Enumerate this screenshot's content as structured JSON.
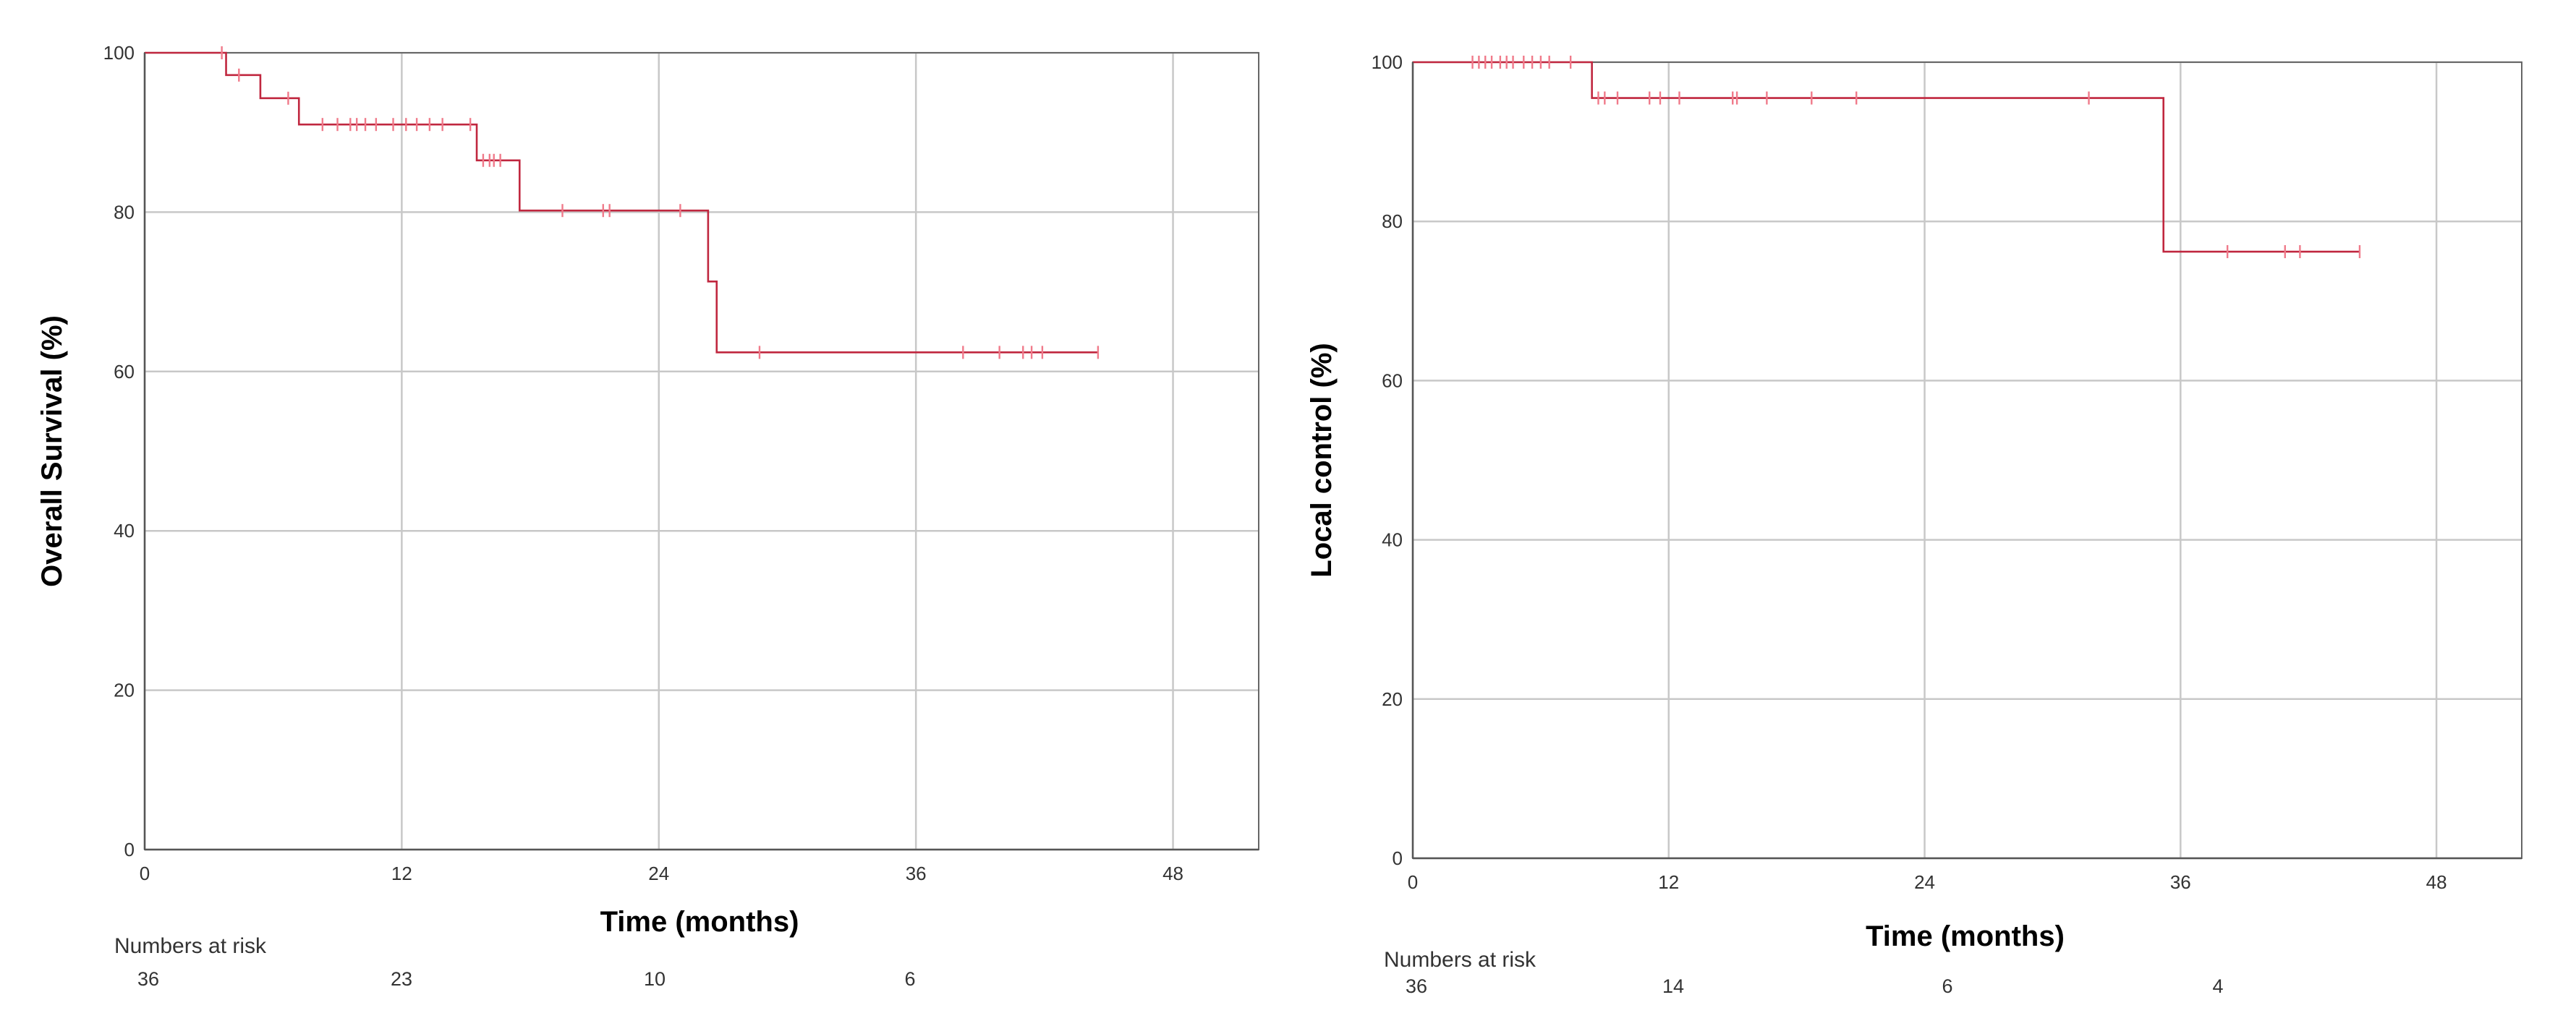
{
  "colors": {
    "line": "#c0273f",
    "censor": "#f07a8a",
    "grid": "#c8c8c8"
  },
  "chart_data": [
    {
      "type": "line",
      "step": true,
      "xlabel": "Time (months)",
      "ylabel": "Overall Survival (%)",
      "xlim": [
        0,
        52
      ],
      "ylim": [
        0,
        100
      ],
      "xticks": [
        "0",
        "12",
        "24",
        "36",
        "48"
      ],
      "yticks": [
        "0",
        "20",
        "40",
        "60",
        "80",
        "100"
      ],
      "grid": true,
      "steps": [
        [
          0,
          100
        ],
        [
          3.8,
          97.2
        ],
        [
          5.4,
          94.3
        ],
        [
          7.2,
          91.0
        ],
        [
          15.5,
          86.5
        ],
        [
          17.5,
          80.2
        ],
        [
          26.3,
          71.3
        ],
        [
          26.7,
          62.4
        ]
      ],
      "x_end": 44.5,
      "censored": [
        [
          3.6,
          100
        ],
        [
          4.4,
          97.2
        ],
        [
          6.7,
          94.3
        ],
        [
          8.3,
          91.0
        ],
        [
          9.0,
          91.0
        ],
        [
          9.6,
          91.0
        ],
        [
          9.9,
          91.0
        ],
        [
          10.3,
          91.0
        ],
        [
          10.8,
          91.0
        ],
        [
          11.6,
          91.0
        ],
        [
          12.2,
          91.0
        ],
        [
          12.7,
          91.0
        ],
        [
          13.3,
          91.0
        ],
        [
          13.9,
          91.0
        ],
        [
          15.2,
          91.0
        ],
        [
          15.8,
          86.5
        ],
        [
          16.1,
          86.5
        ],
        [
          16.3,
          86.5
        ],
        [
          16.6,
          86.5
        ],
        [
          19.5,
          80.2
        ],
        [
          21.4,
          80.2
        ],
        [
          21.7,
          80.2
        ],
        [
          25.0,
          80.2
        ],
        [
          28.7,
          62.4
        ],
        [
          38.2,
          62.4
        ],
        [
          39.9,
          62.4
        ],
        [
          41.0,
          62.4
        ],
        [
          41.4,
          62.4
        ],
        [
          41.9,
          62.4
        ],
        [
          44.5,
          62.4
        ]
      ],
      "risk_table": {
        "title": "Numbers at risk",
        "times": [
          0,
          12,
          24,
          36
        ],
        "values": [
          "36",
          "23",
          "10",
          "6"
        ]
      }
    },
    {
      "type": "line",
      "step": true,
      "xlabel": "Time (months)",
      "ylabel": "Local control (%)",
      "xlim": [
        0,
        52
      ],
      "ylim": [
        0,
        100
      ],
      "xticks": [
        "0",
        "12",
        "24",
        "36",
        "48"
      ],
      "yticks": [
        "0",
        "20",
        "40",
        "60",
        "80",
        "100"
      ],
      "grid": true,
      "steps": [
        [
          0,
          100
        ],
        [
          8.4,
          95.5
        ],
        [
          35.2,
          76.2
        ]
      ],
      "x_end": 44.4,
      "censored": [
        [
          2.8,
          100
        ],
        [
          3.1,
          100
        ],
        [
          3.4,
          100
        ],
        [
          3.7,
          100
        ],
        [
          4.1,
          100
        ],
        [
          4.4,
          100
        ],
        [
          4.7,
          100
        ],
        [
          5.2,
          100
        ],
        [
          5.6,
          100
        ],
        [
          6.0,
          100
        ],
        [
          6.4,
          100
        ],
        [
          7.4,
          100
        ],
        [
          8.7,
          95.5
        ],
        [
          9.0,
          95.5
        ],
        [
          9.6,
          95.5
        ],
        [
          11.1,
          95.5
        ],
        [
          11.6,
          95.5
        ],
        [
          12.5,
          95.5
        ],
        [
          15.0,
          95.5
        ],
        [
          15.2,
          95.5
        ],
        [
          16.6,
          95.5
        ],
        [
          18.7,
          95.5
        ],
        [
          20.8,
          95.5
        ],
        [
          31.7,
          95.5
        ],
        [
          38.2,
          76.2
        ],
        [
          40.9,
          76.2
        ],
        [
          41.6,
          76.2
        ],
        [
          44.4,
          76.2
        ]
      ],
      "risk_table": {
        "title": "Numbers at risk",
        "times": [
          0,
          12,
          24,
          36
        ],
        "values": [
          "36",
          "14",
          "6",
          "4"
        ]
      }
    }
  ]
}
